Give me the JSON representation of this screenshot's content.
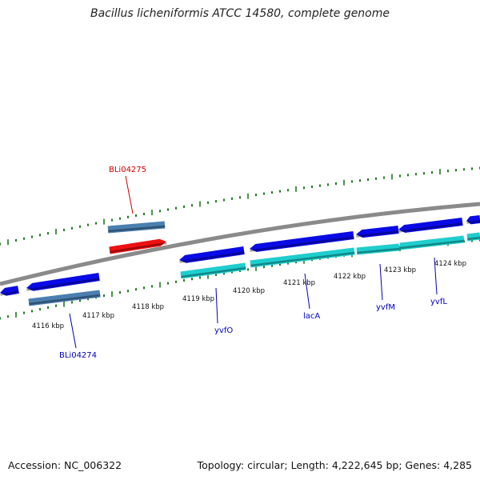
{
  "title": "Bacillus licheniformis ATCC 14580, complete genome",
  "footer": {
    "accession": "Accession: NC_006322",
    "topology": "Topology: circular; Length: 4,222,645 bp; Genes: 4,285"
  },
  "colors": {
    "backbone": "#8a8a8a",
    "tick": "#1e7a1e",
    "gene_blue": "#0a0ae6",
    "gene_cyan": "#1ecece",
    "gene_steel": "#4a7fb0",
    "gene_red": "#ee1111",
    "label_blue": "#0000bb",
    "label_red": "#cc0000"
  },
  "scale_labels": [
    "4116 kbp",
    "4117 kbp",
    "4118 kbp",
    "4119 kbp",
    "4120 kbp",
    "4121 kbp",
    "4122 kbp",
    "4123 kbp",
    "4124 kbp"
  ],
  "gene_labels": [
    {
      "name": "BLi04275",
      "color": "red"
    },
    {
      "name": "BLi04274",
      "color": "blue"
    },
    {
      "name": "yvfO",
      "color": "blue"
    },
    {
      "name": "lacA",
      "color": "blue"
    },
    {
      "name": "yvfM",
      "color": "blue"
    },
    {
      "name": "yvfL",
      "color": "blue"
    }
  ]
}
